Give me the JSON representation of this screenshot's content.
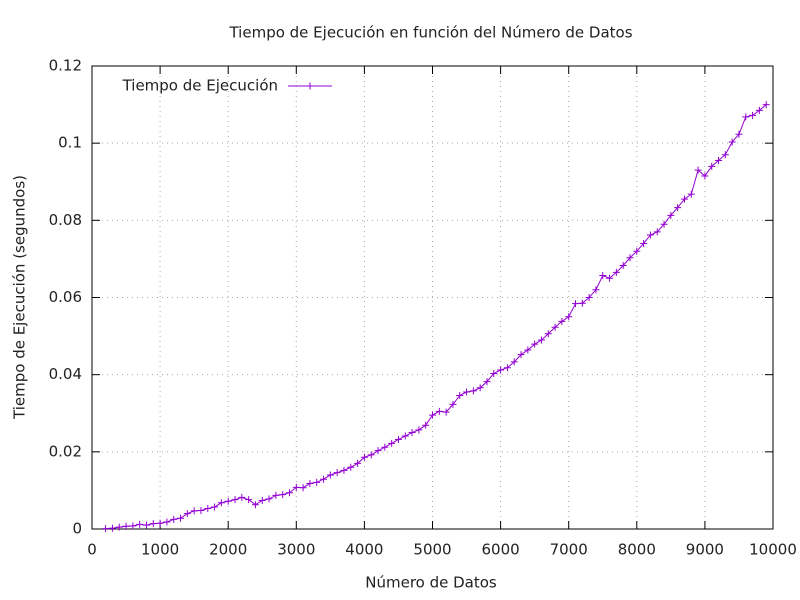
{
  "chart_data": {
    "type": "line",
    "title": "Tiempo de Ejecución en función del Número de Datos",
    "x_label": "Número de Datos",
    "y_label": "Tiempo de Ejecución (segundos)",
    "xlim": [
      0,
      10000
    ],
    "xticks": [
      0,
      1000,
      2000,
      3000,
      4000,
      5000,
      6000,
      7000,
      8000,
      9000,
      10000
    ],
    "ylim": [
      0,
      0.12
    ],
    "yticks": [
      0,
      0.02,
      0.04,
      0.06,
      0.08,
      0.1,
      0.12
    ],
    "grid": true,
    "legend": "top-left",
    "x": [
      200,
      300,
      400,
      500,
      600,
      700,
      800,
      900,
      1000,
      1100,
      1200,
      1300,
      1400,
      1500,
      1600,
      1700,
      1800,
      1900,
      2000,
      2100,
      2200,
      2300,
      2400,
      2500,
      2600,
      2700,
      2800,
      2900,
      3000,
      3100,
      3200,
      3300,
      3400,
      3500,
      3600,
      3700,
      3800,
      3900,
      4000,
      4100,
      4200,
      4300,
      4400,
      4500,
      4600,
      4700,
      4800,
      4900,
      5000,
      5100,
      5200,
      5300,
      5400,
      5500,
      5600,
      5700,
      5800,
      5900,
      6000,
      6100,
      6200,
      6300,
      6400,
      6500,
      6600,
      6700,
      6800,
      6900,
      7000,
      7100,
      7200,
      7300,
      7400,
      7500,
      7600,
      7700,
      7800,
      7900,
      8000,
      8100,
      8200,
      8300,
      8400,
      8500,
      8600,
      8700,
      8800,
      8900,
      9000,
      9100,
      9200,
      9300,
      9400,
      9500,
      9600,
      9700,
      9800,
      9900
    ],
    "series": [
      {
        "name": "Tiempo de Ejecución",
        "color": "#9400d3",
        "values": [
          0.0001,
          0.0002,
          0.0005,
          0.0007,
          0.0008,
          0.0012,
          0.001,
          0.0014,
          0.0015,
          0.0018,
          0.0025,
          0.0028,
          0.004,
          0.0047,
          0.0048,
          0.0053,
          0.0057,
          0.0068,
          0.0072,
          0.0076,
          0.0082,
          0.0076,
          0.0063,
          0.0074,
          0.0078,
          0.0087,
          0.0089,
          0.0094,
          0.0108,
          0.0107,
          0.0118,
          0.0121,
          0.0129,
          0.014,
          0.0146,
          0.0152,
          0.016,
          0.017,
          0.0186,
          0.0192,
          0.0203,
          0.0212,
          0.0222,
          0.0232,
          0.0241,
          0.025,
          0.0257,
          0.0269,
          0.0295,
          0.0305,
          0.0303,
          0.0323,
          0.0346,
          0.0355,
          0.0358,
          0.0366,
          0.0382,
          0.0403,
          0.0412,
          0.0418,
          0.0433,
          0.0452,
          0.0464,
          0.0479,
          0.049,
          0.0506,
          0.0523,
          0.0538,
          0.055,
          0.0584,
          0.0585,
          0.06,
          0.062,
          0.0657,
          0.065,
          0.0665,
          0.0683,
          0.0703,
          0.072,
          0.074,
          0.0762,
          0.077,
          0.079,
          0.0813,
          0.0833,
          0.0855,
          0.0868,
          0.093,
          0.0915,
          0.094,
          0.0955,
          0.097,
          0.1003,
          0.1023,
          0.1068,
          0.1072,
          0.1085,
          0.11
        ]
      }
    ]
  }
}
